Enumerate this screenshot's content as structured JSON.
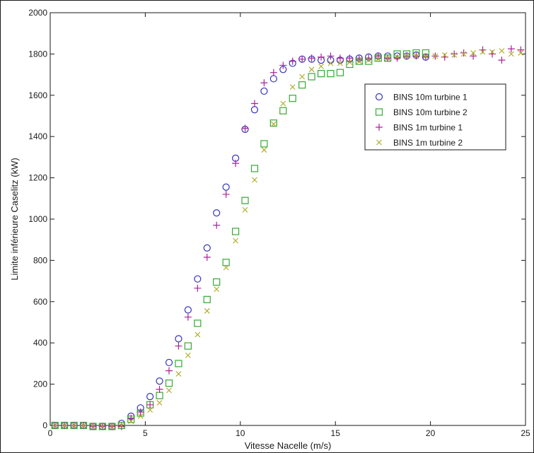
{
  "chart_data": {
    "type": "scatter",
    "xlabel": "Vitesse Nacelle (m/s)",
    "ylabel": "Limite inférieure Caselitz (kW)",
    "xlim": [
      0,
      25
    ],
    "ylim": [
      0,
      2000
    ],
    "xticks": [
      0,
      5,
      10,
      15,
      20,
      25
    ],
    "yticks": [
      0,
      200,
      400,
      600,
      800,
      1000,
      1200,
      1400,
      1600,
      1800,
      2000
    ],
    "grid": false,
    "legend_position": "right",
    "series": [
      {
        "name": "BINS 10m turbine 1",
        "marker": "circle",
        "color": "#3333bb",
        "x": [
          0.25,
          0.75,
          1.25,
          1.75,
          2.25,
          2.75,
          3.25,
          3.75,
          4.25,
          4.75,
          5.25,
          5.75,
          6.25,
          6.75,
          7.25,
          7.75,
          8.25,
          8.75,
          9.25,
          9.75,
          10.25,
          10.75,
          11.25,
          11.75,
          12.25,
          12.75,
          13.25,
          13.75,
          14.25,
          14.75,
          15.25,
          15.75,
          16.25,
          16.75,
          17.25,
          17.75,
          18.25,
          18.75,
          19.25,
          19.75
        ],
        "y": [
          0,
          0,
          0,
          0,
          -5,
          -5,
          -5,
          10,
          45,
          85,
          140,
          215,
          305,
          420,
          560,
          710,
          860,
          1030,
          1155,
          1295,
          1435,
          1530,
          1620,
          1680,
          1725,
          1755,
          1775,
          1775,
          1770,
          1770,
          1770,
          1775,
          1780,
          1785,
          1790,
          1790,
          1790,
          1790,
          1795,
          1785
        ]
      },
      {
        "name": "BINS 10m turbine 2",
        "marker": "square",
        "color": "#33aa33",
        "x": [
          0.25,
          0.75,
          1.25,
          1.75,
          2.25,
          2.75,
          3.25,
          3.75,
          4.25,
          4.75,
          5.25,
          5.75,
          6.25,
          6.75,
          7.25,
          7.75,
          8.25,
          8.75,
          9.25,
          9.75,
          10.25,
          10.75,
          11.25,
          11.75,
          12.25,
          12.75,
          13.25,
          13.75,
          14.25,
          14.75,
          15.25,
          15.75,
          16.25,
          16.75,
          17.25,
          17.75,
          18.25,
          18.75,
          19.25,
          19.75
        ],
        "y": [
          0,
          0,
          0,
          0,
          -5,
          -5,
          -5,
          0,
          30,
          60,
          100,
          145,
          205,
          300,
          385,
          495,
          610,
          695,
          790,
          940,
          1090,
          1245,
          1365,
          1465,
          1525,
          1585,
          1650,
          1690,
          1705,
          1705,
          1710,
          1750,
          1765,
          1765,
          1780,
          1780,
          1800,
          1800,
          1805,
          1805
        ]
      },
      {
        "name": "BINS 1m turbine 1",
        "marker": "plus",
        "color": "#aa2299",
        "x": [
          0.25,
          0.75,
          1.25,
          1.75,
          2.25,
          2.75,
          3.25,
          3.75,
          4.25,
          4.75,
          5.25,
          5.75,
          6.25,
          6.75,
          7.25,
          7.75,
          8.25,
          8.75,
          9.25,
          9.75,
          10.25,
          10.75,
          11.25,
          11.75,
          12.25,
          12.75,
          13.25,
          13.75,
          14.25,
          14.75,
          15.25,
          15.75,
          16.25,
          16.75,
          17.25,
          17.75,
          18.25,
          18.75,
          19.25,
          19.75,
          20.25,
          20.75,
          21.25,
          21.75,
          22.25,
          22.75,
          23.25,
          23.75,
          24.25,
          24.75
        ],
        "y": [
          0,
          0,
          0,
          0,
          -5,
          -5,
          -5,
          -5,
          35,
          65,
          100,
          175,
          265,
          385,
          525,
          665,
          815,
          970,
          1120,
          1270,
          1440,
          1560,
          1660,
          1710,
          1745,
          1765,
          1775,
          1780,
          1785,
          1790,
          1780,
          1780,
          1775,
          1780,
          1790,
          1780,
          1780,
          1790,
          1790,
          1785,
          1790,
          1785,
          1800,
          1805,
          1790,
          1820,
          1800,
          1770,
          1825,
          1820
        ]
      },
      {
        "name": "BINS 1m turbine 2",
        "marker": "cross",
        "color": "#aaaa22",
        "x": [
          0.25,
          0.75,
          1.25,
          1.75,
          2.25,
          2.75,
          3.25,
          3.75,
          4.25,
          4.75,
          5.25,
          5.75,
          6.25,
          6.75,
          7.25,
          7.75,
          8.25,
          8.75,
          9.25,
          9.75,
          10.25,
          10.75,
          11.25,
          11.75,
          12.25,
          12.75,
          13.25,
          13.75,
          14.25,
          14.75,
          15.25,
          15.75,
          16.25,
          16.75,
          17.25,
          17.75,
          18.25,
          18.75,
          19.25,
          19.75,
          20.25,
          20.75,
          21.25,
          21.75,
          22.25,
          22.75,
          23.25,
          23.75,
          24.25,
          24.75
        ],
        "y": [
          0,
          0,
          0,
          0,
          -5,
          -5,
          -5,
          0,
          20,
          45,
          75,
          110,
          170,
          250,
          340,
          440,
          555,
          660,
          765,
          895,
          1045,
          1190,
          1335,
          1460,
          1560,
          1640,
          1690,
          1725,
          1740,
          1755,
          1755,
          1760,
          1765,
          1770,
          1775,
          1780,
          1785,
          1790,
          1790,
          1790,
          1790,
          1795,
          1795,
          1800,
          1805,
          1810,
          1810,
          1815,
          1800,
          1805
        ]
      }
    ]
  }
}
